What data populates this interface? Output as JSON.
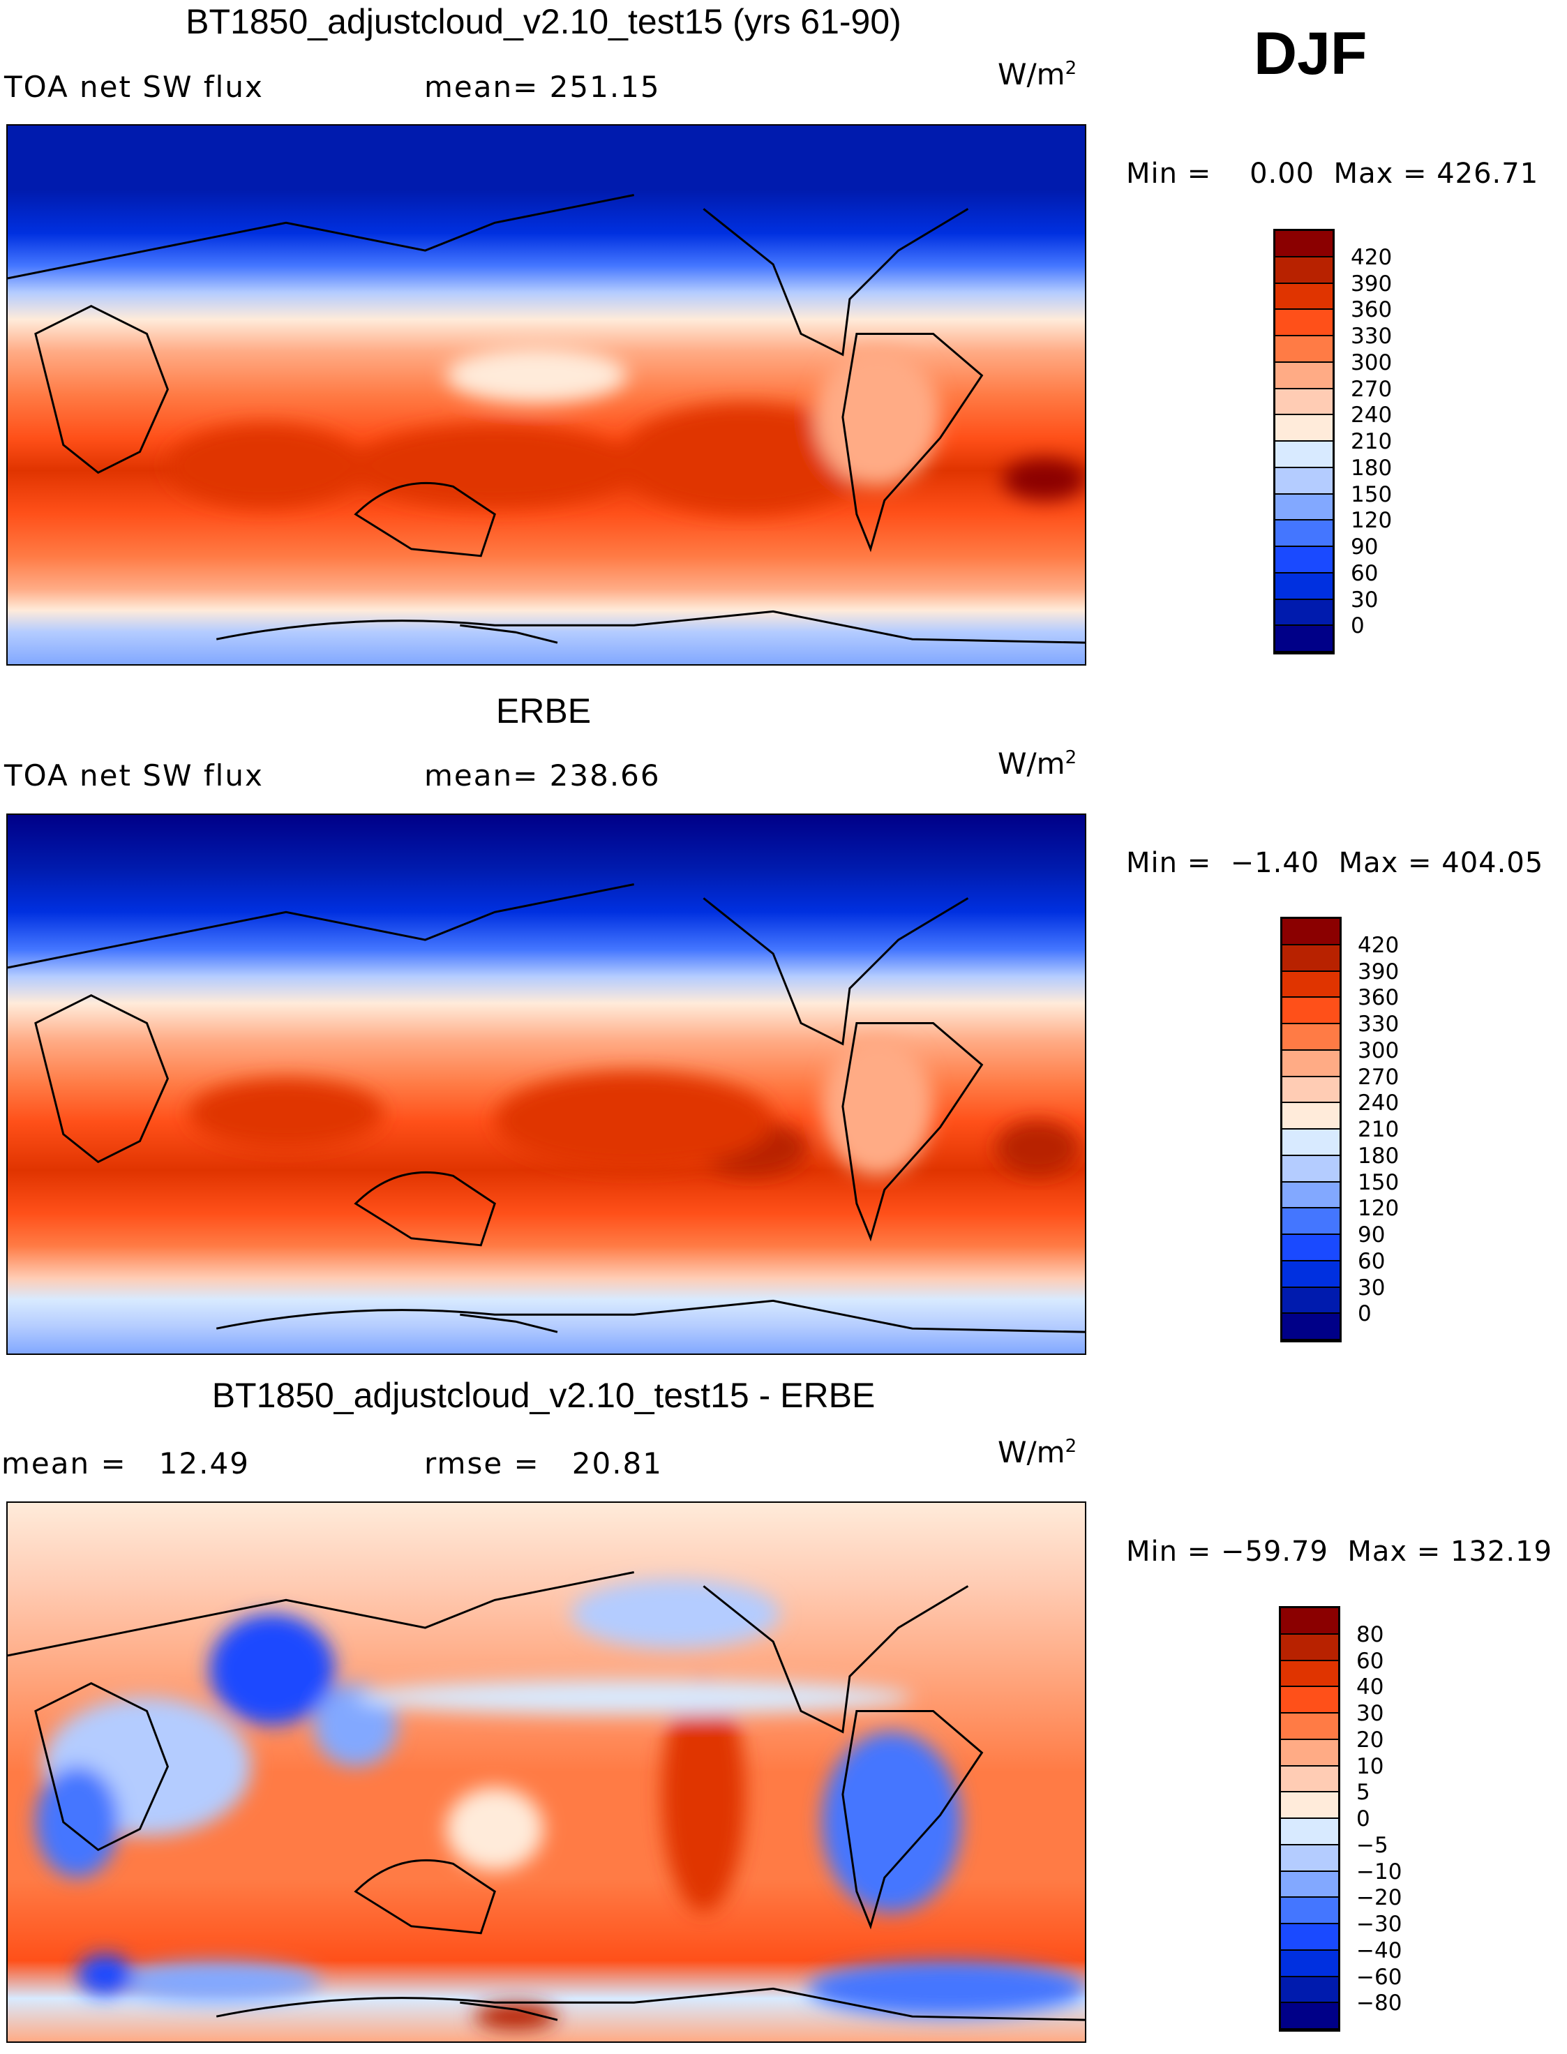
{
  "season": "DJF",
  "colors": [
    "#000088",
    "#001BAE",
    "#0030E0",
    "#1A4AFF",
    "#4476FF",
    "#82A8FF",
    "#B4CCFF",
    "#D8EAFF",
    "#FFEBDA",
    "#FFCCB4",
    "#FFAB85",
    "#FF7B45",
    "#FF5019",
    "#E03400",
    "#B82200",
    "#8B0000"
  ],
  "panels": [
    {
      "title": "BT1850_adjustcloud_v2.10_test15 (yrs 61-90)",
      "left_label": "TOA net SW flux",
      "center_label": "mean= 251.15",
      "units": "W/m",
      "units_sup": "2",
      "minmax": "Min =    0.00  Max = 426.71"
    },
    {
      "title": "ERBE",
      "left_label": "TOA net SW flux",
      "center_label": "mean= 238.66",
      "units": "W/m",
      "units_sup": "2",
      "minmax": "Min =  −1.40  Max = 404.05"
    },
    {
      "title": "BT1850_adjustcloud_v2.10_test15 - ERBE",
      "left_label": "mean =   12.49",
      "center_label": "rmse =   20.81",
      "units": "W/m",
      "units_sup": "2",
      "minmax": "Min = −59.79  Max = 132.19"
    }
  ],
  "chart_data": [
    {
      "type": "heatmap",
      "title": "BT1850_adjustcloud_v2.10_test15 (yrs 61-90)",
      "variable": "TOA net SW flux",
      "units": "W/m2",
      "mean": 251.15,
      "min": 0.0,
      "max": 426.71,
      "levels": [
        "420",
        "390",
        "360",
        "330",
        "300",
        "270",
        "240",
        "210",
        "180",
        "150",
        "120",
        "90",
        "60",
        "30",
        "0"
      ]
    },
    {
      "type": "heatmap",
      "title": "ERBE",
      "variable": "TOA net SW flux",
      "units": "W/m2",
      "mean": 238.66,
      "min": -1.4,
      "max": 404.05,
      "levels": [
        "420",
        "390",
        "360",
        "330",
        "300",
        "270",
        "240",
        "210",
        "180",
        "150",
        "120",
        "90",
        "60",
        "30",
        "0"
      ]
    },
    {
      "type": "heatmap",
      "title": "BT1850_adjustcloud_v2.10_test15 - ERBE",
      "units": "W/m2",
      "mean": 12.49,
      "rmse": 20.81,
      "min": -59.79,
      "max": 132.19,
      "levels": [
        "80",
        "60",
        "40",
        "30",
        "20",
        "10",
        "5",
        "0",
        "−5",
        "−10",
        "−20",
        "−30",
        "−40",
        "−60",
        "−80"
      ]
    }
  ]
}
